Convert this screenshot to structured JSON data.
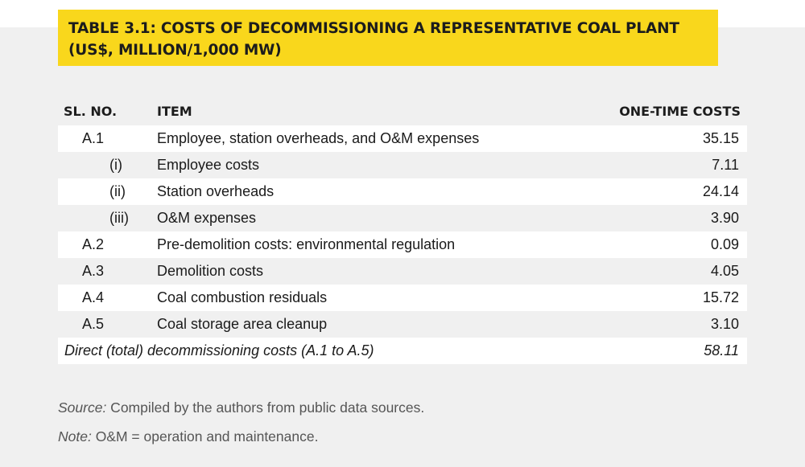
{
  "title": {
    "line1": "TABLE 3.1: COSTS OF DECOMMISSIONING A REPRESENTATIVE COAL PLANT",
    "line2": "(US$, MILLION/1,000 MW)"
  },
  "table": {
    "headers": {
      "sl_no": "SL. NO.",
      "item": "ITEM",
      "cost": "ONE-TIME COSTS"
    },
    "rows": [
      {
        "sl": "A.1",
        "item": "Employee, station overheads, and O&M expenses",
        "value": "35.15"
      },
      {
        "sl": "(i)",
        "item": "Employee costs",
        "value": "7.11"
      },
      {
        "sl": "(ii)",
        "item": "Station overheads",
        "value": "24.14"
      },
      {
        "sl": "(iii)",
        "item": "O&M expenses",
        "value": "3.90"
      },
      {
        "sl": "A.2",
        "item": "Pre-demolition costs: environmental regulation",
        "value": "0.09"
      },
      {
        "sl": "A.3",
        "item": "Demolition costs",
        "value": "4.05"
      },
      {
        "sl": "A.4",
        "item": "Coal combustion residuals",
        "value": "15.72"
      },
      {
        "sl": "A.5",
        "item": "Coal storage area cleanup",
        "value": "3.10"
      }
    ],
    "total": {
      "item": "Direct (total) decommissioning costs (A.1 to A.5)",
      "value": "58.11"
    }
  },
  "notes": {
    "source_label": "Source:",
    "source_text": " Compiled by the authors from public data sources.",
    "note_label": "Note:",
    "note_text": " O&M = operation and maintenance."
  },
  "colors": {
    "title_background": "#f9d71c",
    "panel_background": "#f0f0f0",
    "row_shade": "#ffffff"
  }
}
